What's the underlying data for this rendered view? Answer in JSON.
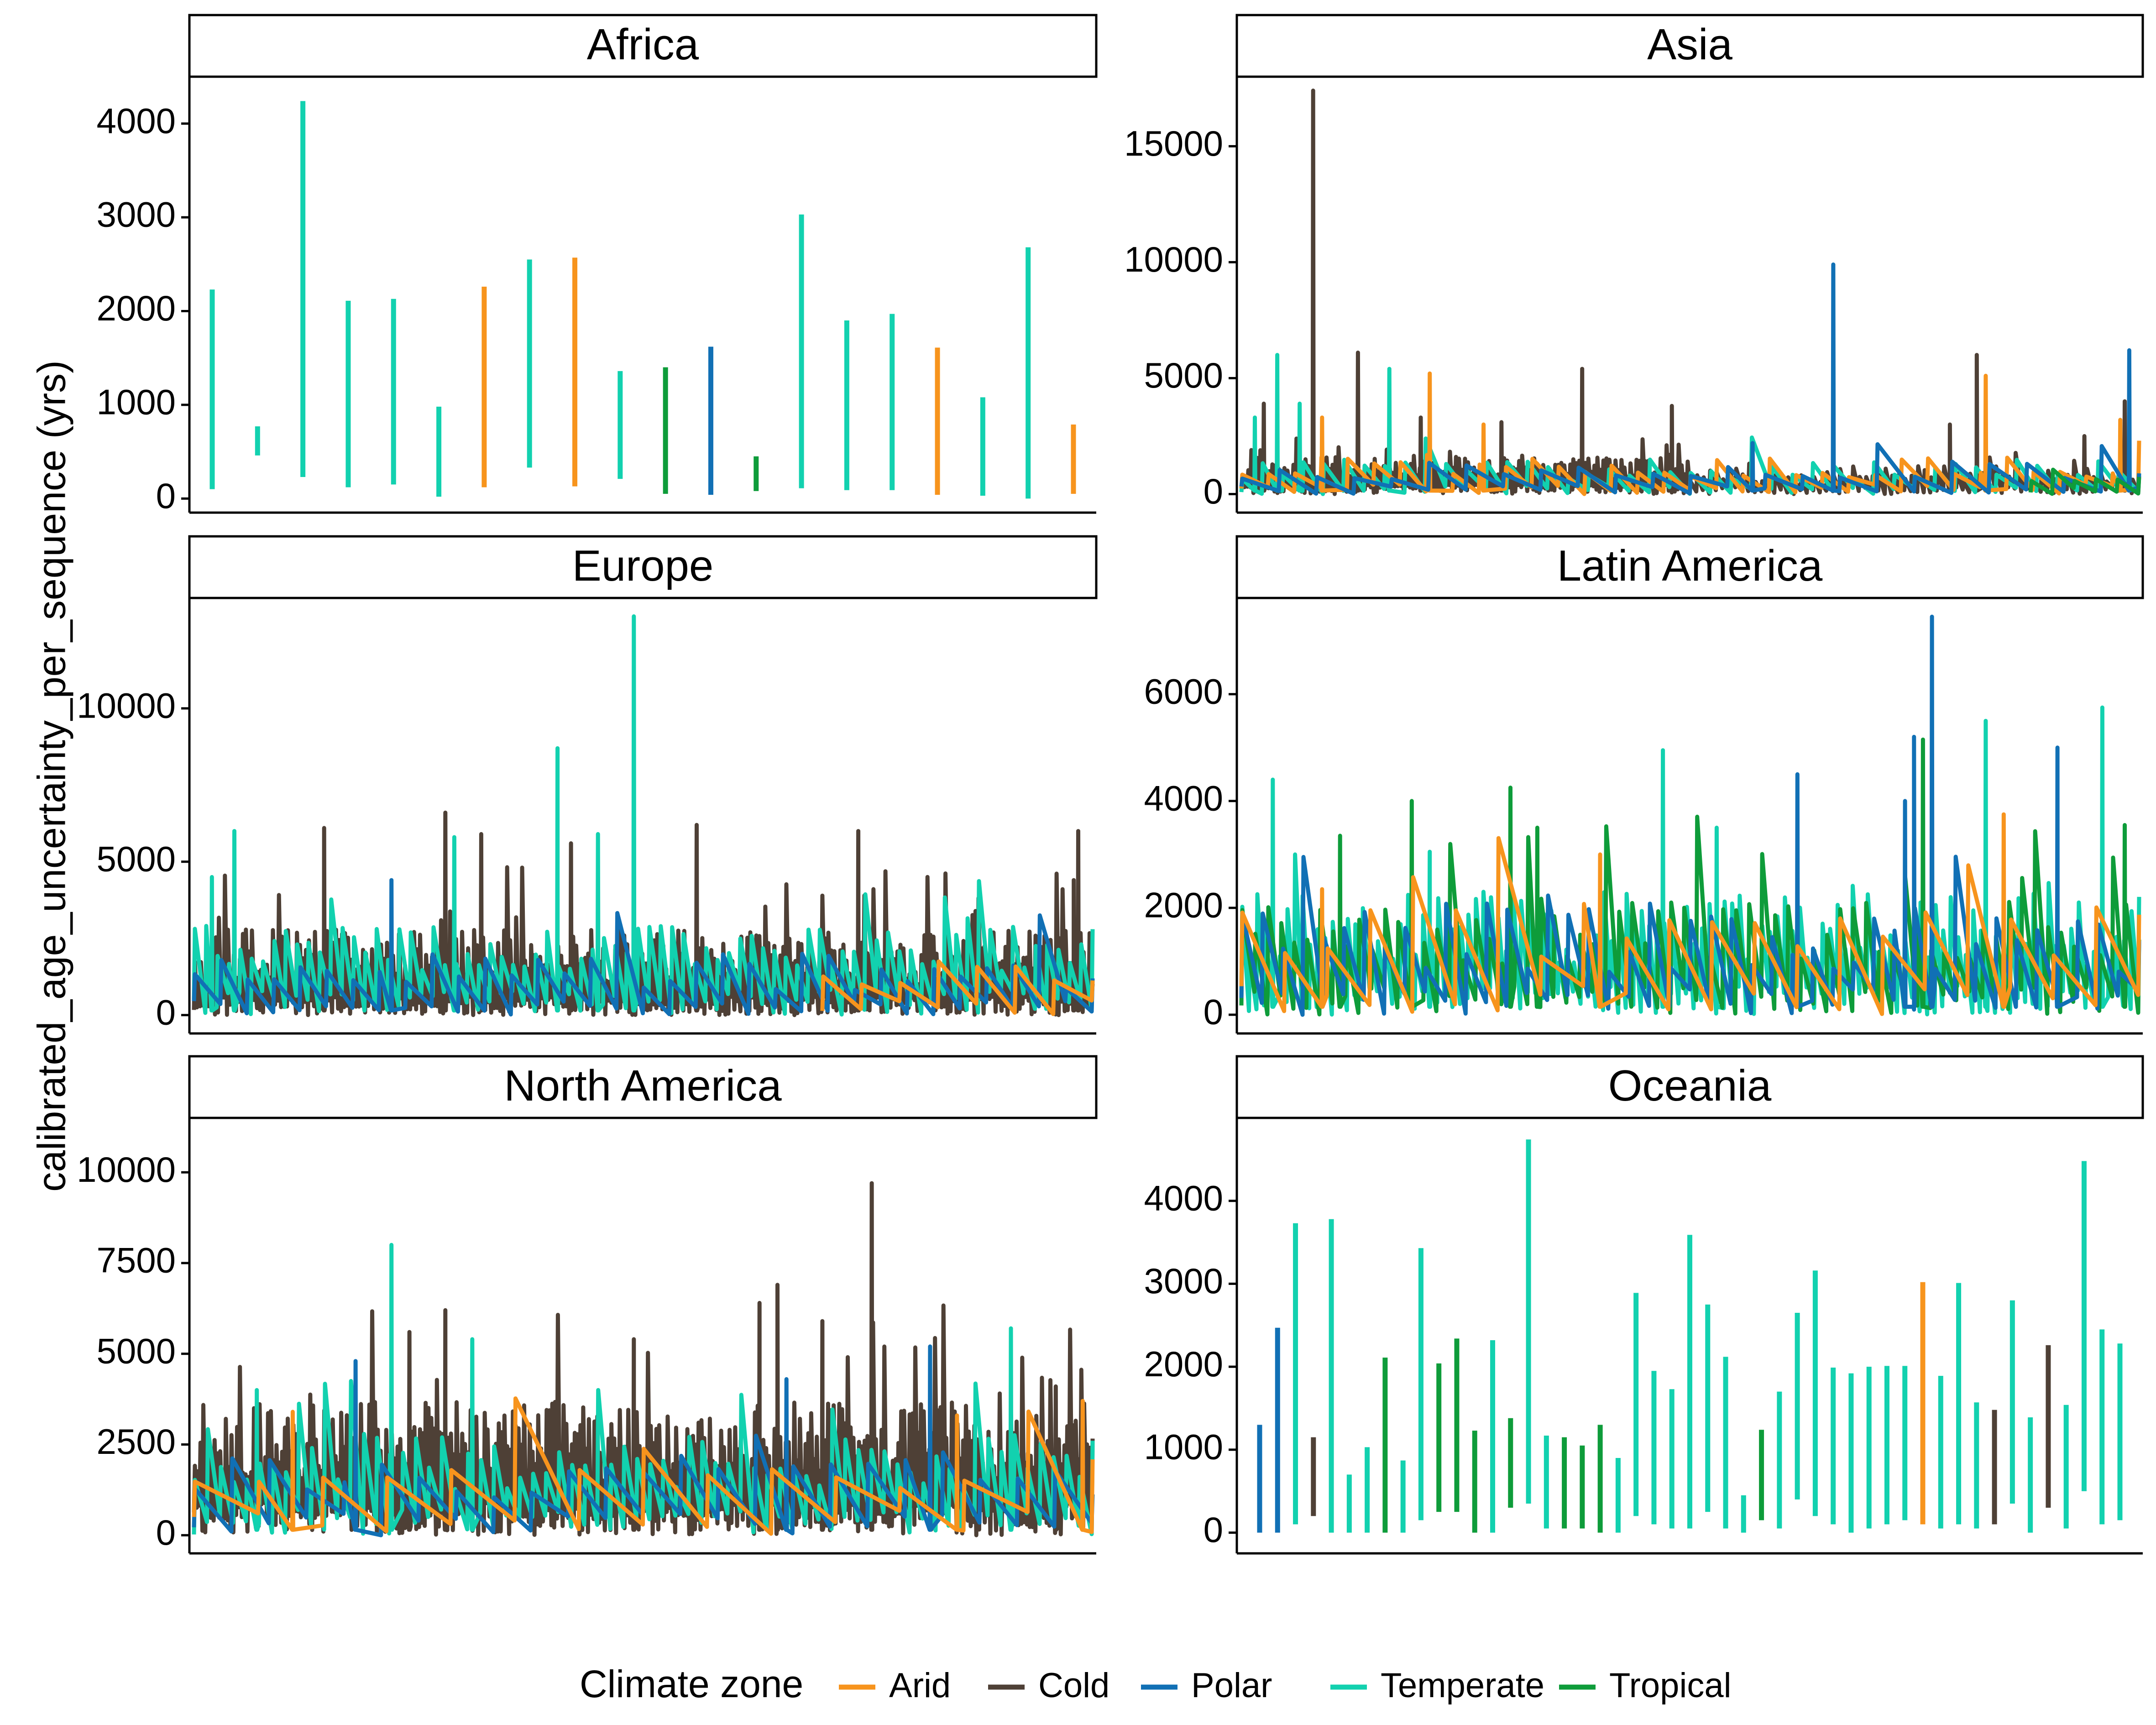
{
  "chart_data": {
    "type": "bar",
    "ylabel": "calibrated_age_uncertainty_per_sequence (yrs)",
    "xlabel": "",
    "legend": {
      "title": "Climate zone",
      "position": "bottom",
      "entries": [
        {
          "name": "Arid",
          "color": "#F7941D"
        },
        {
          "name": "Cold",
          "color": "#4E4036"
        },
        {
          "name": "Polar",
          "color": "#1170B5"
        },
        {
          "name": "Temperate",
          "color": "#12D1AF"
        },
        {
          "name": "Tropical",
          "color": "#0E9C3A"
        }
      ]
    },
    "panels": [
      {
        "title": "Africa",
        "ylim": [
          -150,
          4500
        ],
        "ticks": [
          0,
          1000,
          2000,
          3000,
          4000
        ],
        "tick_labels": [
          "0",
          "1000",
          "2000",
          "3000",
          "4000"
        ],
        "segments": [
          {
            "zone": "Temperate",
            "min": 100,
            "max": 2230
          },
          {
            "zone": "Temperate",
            "min": 460,
            "max": 770
          },
          {
            "zone": "Temperate",
            "min": 230,
            "max": 4240
          },
          {
            "zone": "Temperate",
            "min": 120,
            "max": 2110
          },
          {
            "zone": "Temperate",
            "min": 150,
            "max": 2130
          },
          {
            "zone": "Temperate",
            "min": 20,
            "max": 980
          },
          {
            "zone": "Arid",
            "min": 120,
            "max": 2260
          },
          {
            "zone": "Temperate",
            "min": 330,
            "max": 2550
          },
          {
            "zone": "Arid",
            "min": 130,
            "max": 2570
          },
          {
            "zone": "Temperate",
            "min": 210,
            "max": 1360
          },
          {
            "zone": "Tropical",
            "min": 50,
            "max": 1400
          },
          {
            "zone": "Polar",
            "min": 40,
            "max": 1620
          },
          {
            "zone": "Tropical",
            "min": 80,
            "max": 450
          },
          {
            "zone": "Temperate",
            "min": 110,
            "max": 3030
          },
          {
            "zone": "Temperate",
            "min": 90,
            "max": 1900
          },
          {
            "zone": "Temperate",
            "min": 90,
            "max": 1970
          },
          {
            "zone": "Arid",
            "min": 40,
            "max": 1610
          },
          {
            "zone": "Temperate",
            "min": 30,
            "max": 1080
          },
          {
            "zone": "Temperate",
            "min": 0,
            "max": 2680
          },
          {
            "zone": "Arid",
            "min": 50,
            "max": 790
          }
        ]
      },
      {
        "title": "Asia",
        "ylim": [
          -800,
          18000
        ],
        "ticks": [
          0,
          5000,
          10000,
          15000
        ],
        "tick_labels": [
          "0",
          "5000",
          "10000",
          "15000"
        ],
        "series": [
          {
            "zone": "Cold",
            "x0": 0.0,
            "x1": 0.5,
            "n": 150,
            "base": 700,
            "amp": 900,
            "min": 0,
            "peaks": [
              [
                0.08,
                17400
              ],
              [
                0.13,
                6100
              ],
              [
                0.38,
                5400
              ],
              [
                0.48,
                3800
              ],
              [
                0.025,
                3900
              ],
              [
                0.2,
                3300
              ],
              [
                0.29,
                3100
              ]
            ]
          },
          {
            "zone": "Cold",
            "x0": 0.5,
            "x1": 1.0,
            "n": 70,
            "base": 500,
            "amp": 700,
            "min": 0,
            "peaks": [
              [
                0.82,
                6000
              ],
              [
                0.985,
                4000
              ],
              [
                0.79,
                3000
              ],
              [
                0.94,
                2500
              ]
            ]
          },
          {
            "zone": "Temperate",
            "x0": 0.0,
            "x1": 1.0,
            "n": 45,
            "base": 600,
            "amp": 900,
            "min": 0,
            "peaks": [
              [
                0.04,
                6000
              ],
              [
                0.065,
                3900
              ],
              [
                0.165,
                5400
              ],
              [
                0.015,
                3300
              ]
            ]
          },
          {
            "zone": "Arid",
            "x0": 0.0,
            "x1": 1.0,
            "n": 35,
            "base": 700,
            "amp": 900,
            "min": 0,
            "peaks": [
              [
                0.21,
                5200
              ],
              [
                0.83,
                5100
              ],
              [
                0.98,
                3200
              ],
              [
                0.09,
                3300
              ],
              [
                0.27,
                3000
              ]
            ]
          },
          {
            "zone": "Polar",
            "x0": 0.0,
            "x1": 1.0,
            "n": 25,
            "base": 600,
            "amp": 800,
            "min": 0,
            "peaks": [
              [
                0.66,
                9900
              ],
              [
                0.99,
                6200
              ],
              [
                0.57,
                2200
              ]
            ]
          },
          {
            "zone": "Tropical",
            "x0": 0.88,
            "x1": 1.0,
            "n": 6,
            "base": 500,
            "amp": 600,
            "min": 0,
            "peaks": []
          }
        ]
      },
      {
        "title": "Europe",
        "ylim": [
          -600,
          13600
        ],
        "ticks": [
          0,
          5000,
          10000
        ],
        "tick_labels": [
          "0",
          "5000",
          "10000"
        ],
        "series": [
          {
            "zone": "Cold",
            "x0": 0.0,
            "x1": 1.0,
            "n": 300,
            "base": 1000,
            "amp": 1800,
            "min": 0,
            "peaks": [
              [
                0.145,
                6100
              ],
              [
                0.28,
                6600
              ],
              [
                0.32,
                5900
              ],
              [
                0.56,
                6200
              ],
              [
                0.74,
                6000
              ],
              [
                0.985,
                6000
              ],
              [
                0.98,
                4400
              ],
              [
                0.42,
                5600
              ]
            ]
          },
          {
            "zone": "Temperate",
            "x0": 0.0,
            "x1": 1.0,
            "n": 80,
            "base": 1400,
            "amp": 1500,
            "min": 0,
            "peaks": [
              [
                0.49,
                13000
              ],
              [
                0.405,
                8700
              ],
              [
                0.29,
                5800
              ],
              [
                0.045,
                6000
              ],
              [
                0.45,
                5900
              ],
              [
                0.02,
                4500
              ]
            ]
          },
          {
            "zone": "Polar",
            "x0": 0.0,
            "x1": 1.0,
            "n": 35,
            "base": 800,
            "amp": 1200,
            "min": 0,
            "peaks": [
              [
                0.22,
                4400
              ]
            ]
          },
          {
            "zone": "Arid",
            "x0": 0.7,
            "x1": 1.0,
            "n": 8,
            "base": 800,
            "amp": 1000,
            "min": 0,
            "peaks": []
          }
        ]
      },
      {
        "title": "Latin America",
        "ylim": [
          -350,
          7800
        ],
        "ticks": [
          0,
          2000,
          4000,
          6000
        ],
        "tick_labels": [
          "0",
          "2000",
          "4000",
          "6000"
        ],
        "series": [
          {
            "zone": "Temperate",
            "x0": 0.0,
            "x1": 1.0,
            "n": 120,
            "base": 900,
            "amp": 1400,
            "min": 0,
            "peaks": [
              [
                0.035,
                4400
              ],
              [
                0.47,
                4950
              ],
              [
                0.83,
                5500
              ],
              [
                0.96,
                5750
              ],
              [
                0.53,
                3500
              ],
              [
                0.21,
                3050
              ]
            ]
          },
          {
            "zone": "Tropical",
            "x0": 0.0,
            "x1": 1.0,
            "n": 70,
            "base": 900,
            "amp": 1300,
            "min": 0,
            "peaks": [
              [
                0.11,
                3350
              ],
              [
                0.19,
                4000
              ],
              [
                0.3,
                4250
              ],
              [
                0.33,
                3500
              ],
              [
                0.76,
                5150
              ],
              [
                0.985,
                3550
              ]
            ]
          },
          {
            "zone": "Polar",
            "x0": 0.0,
            "x1": 1.0,
            "n": 45,
            "base": 800,
            "amp": 1300,
            "min": 0,
            "peaks": [
              [
                0.77,
                7450
              ],
              [
                0.75,
                5200
              ],
              [
                0.91,
                5000
              ],
              [
                0.62,
                4500
              ],
              [
                0.74,
                4000
              ]
            ]
          },
          {
            "zone": "Arid",
            "x0": 0.0,
            "x1": 1.0,
            "n": 22,
            "base": 900,
            "amp": 1200,
            "min": 0,
            "peaks": [
              [
                0.4,
                3000
              ],
              [
                0.85,
                3750
              ],
              [
                0.09,
                2350
              ]
            ]
          }
        ]
      },
      {
        "title": "North America",
        "ylim": [
          -500,
          11500
        ],
        "ticks": [
          0,
          2500,
          5000,
          7500,
          10000
        ],
        "tick_labels": [
          "0",
          "2500",
          "5000",
          "7500",
          "10000"
        ],
        "series": [
          {
            "zone": "Cold",
            "x0": 0.0,
            "x1": 1.0,
            "n": 320,
            "base": 1500,
            "amp": 2200,
            "min": 0,
            "peaks": [
              [
                0.755,
                9700
              ],
              [
                0.65,
                6900
              ],
              [
                0.63,
                6400
              ],
              [
                0.7,
                5900
              ],
              [
                0.28,
                6200
              ],
              [
                0.49,
                5400
              ],
              [
                0.24,
                5600
              ],
              [
                0.96,
                4100
              ]
            ]
          },
          {
            "zone": "Temperate",
            "x0": 0.0,
            "x1": 1.0,
            "n": 70,
            "base": 1200,
            "amp": 1600,
            "min": 0,
            "peaks": [
              [
                0.22,
                8000
              ],
              [
                0.91,
                5700
              ],
              [
                0.31,
                5400
              ],
              [
                0.07,
                4000
              ]
            ]
          },
          {
            "zone": "Polar",
            "x0": 0.0,
            "x1": 1.0,
            "n": 25,
            "base": 1000,
            "amp": 1300,
            "min": 0,
            "peaks": [
              [
                0.18,
                4800
              ],
              [
                0.82,
                5200
              ],
              [
                0.66,
                4300
              ]
            ]
          },
          {
            "zone": "Arid",
            "x0": 0.0,
            "x1": 1.0,
            "n": 15,
            "base": 1200,
            "amp": 1200,
            "min": 0,
            "peaks": [
              [
                0.11,
                3400
              ],
              [
                0.85,
                3300
              ],
              [
                0.99,
                3700
              ]
            ]
          }
        ]
      },
      {
        "title": "Oceania",
        "ylim": [
          -250,
          5000
        ],
        "ticks": [
          0,
          1000,
          2000,
          3000,
          4000
        ],
        "tick_labels": [
          "0",
          "1000",
          "2000",
          "3000",
          "4000"
        ],
        "segments": [
          {
            "zone": "Polar",
            "min": 0,
            "max": 1300
          },
          {
            "zone": "Polar",
            "min": 0,
            "max": 2470
          },
          {
            "zone": "Temperate",
            "min": 100,
            "max": 3730
          },
          {
            "zone": "Cold",
            "min": 200,
            "max": 1150
          },
          {
            "zone": "Temperate",
            "min": 0,
            "max": 3780
          },
          {
            "zone": "Temperate",
            "min": 0,
            "max": 700
          },
          {
            "zone": "Temperate",
            "min": 0,
            "max": 1030
          },
          {
            "zone": "Tropical",
            "min": 0,
            "max": 2110
          },
          {
            "zone": "Temperate",
            "min": 0,
            "max": 870
          },
          {
            "zone": "Temperate",
            "min": 150,
            "max": 3430
          },
          {
            "zone": "Tropical",
            "min": 250,
            "max": 2040
          },
          {
            "zone": "Tropical",
            "min": 250,
            "max": 2340
          },
          {
            "zone": "Tropical",
            "min": 0,
            "max": 1230
          },
          {
            "zone": "Temperate",
            "min": 0,
            "max": 2320
          },
          {
            "zone": "Tropical",
            "min": 300,
            "max": 1380
          },
          {
            "zone": "Temperate",
            "min": 350,
            "max": 4740
          },
          {
            "zone": "Temperate",
            "min": 50,
            "max": 1170
          },
          {
            "zone": "Tropical",
            "min": 50,
            "max": 1150
          },
          {
            "zone": "Tropical",
            "min": 50,
            "max": 1050
          },
          {
            "zone": "Tropical",
            "min": 0,
            "max": 1300
          },
          {
            "zone": "Temperate",
            "min": 0,
            "max": 900
          },
          {
            "zone": "Temperate",
            "min": 200,
            "max": 2890
          },
          {
            "zone": "Temperate",
            "min": 100,
            "max": 1950
          },
          {
            "zone": "Temperate",
            "min": 50,
            "max": 1730
          },
          {
            "zone": "Temperate",
            "min": 50,
            "max": 3590
          },
          {
            "zone": "Temperate",
            "min": 250,
            "max": 2750
          },
          {
            "zone": "Temperate",
            "min": 50,
            "max": 2120
          },
          {
            "zone": "Temperate",
            "min": 0,
            "max": 450
          },
          {
            "zone": "Tropical",
            "min": 150,
            "max": 1240
          },
          {
            "zone": "Temperate",
            "min": 50,
            "max": 1700
          },
          {
            "zone": "Temperate",
            "min": 400,
            "max": 2650
          },
          {
            "zone": "Temperate",
            "min": 200,
            "max": 3160
          },
          {
            "zone": "Temperate",
            "min": 100,
            "max": 1990
          },
          {
            "zone": "Temperate",
            "min": 0,
            "max": 1920
          },
          {
            "zone": "Temperate",
            "min": 50,
            "max": 2000
          },
          {
            "zone": "Temperate",
            "min": 100,
            "max": 2010
          },
          {
            "zone": "Temperate",
            "min": 150,
            "max": 2010
          },
          {
            "zone": "Arid",
            "min": 100,
            "max": 3020
          },
          {
            "zone": "Temperate",
            "min": 50,
            "max": 1890
          },
          {
            "zone": "Temperate",
            "min": 100,
            "max": 3010
          },
          {
            "zone": "Temperate",
            "min": 50,
            "max": 1570
          },
          {
            "zone": "Cold",
            "min": 100,
            "max": 1480
          },
          {
            "zone": "Temperate",
            "min": 350,
            "max": 2800
          },
          {
            "zone": "Temperate",
            "min": 0,
            "max": 1390
          },
          {
            "zone": "Cold",
            "min": 300,
            "max": 2260
          },
          {
            "zone": "Temperate",
            "min": 50,
            "max": 1540
          },
          {
            "zone": "Temperate",
            "min": 500,
            "max": 4480
          },
          {
            "zone": "Temperate",
            "min": 100,
            "max": 2450
          },
          {
            "zone": "Temperate",
            "min": 150,
            "max": 2280
          }
        ]
      }
    ]
  }
}
